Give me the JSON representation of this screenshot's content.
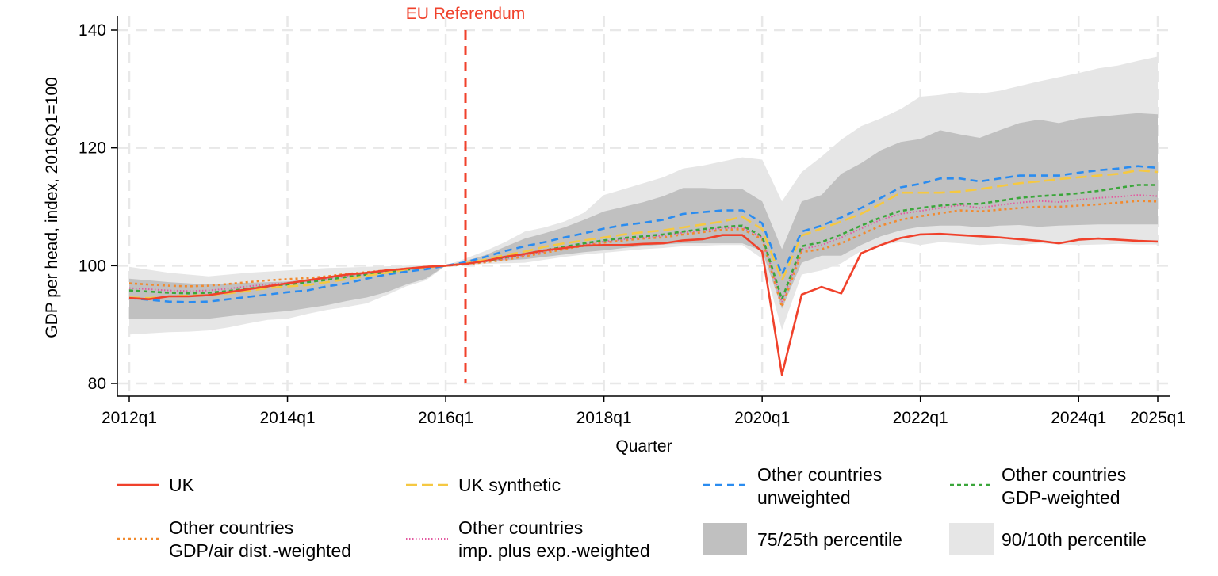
{
  "chart_data": {
    "type": "line",
    "title": "",
    "xlabel": "Quarter",
    "ylabel": "GDP per head, index, 2016Q1=100",
    "ylim": [
      80,
      140
    ],
    "yticks": [
      "80",
      "100",
      "120",
      "140"
    ],
    "x_start": "2012q1",
    "x_end": "2025q1",
    "xticks": [
      {
        "q": "2012q1",
        "label": "2012q1"
      },
      {
        "q": "2014q1",
        "label": "2014q1"
      },
      {
        "q": "2016q1",
        "label": "2016q1"
      },
      {
        "q": "2018q1",
        "label": "2018q1"
      },
      {
        "q": "2020q1",
        "label": "2020q1"
      },
      {
        "q": "2022q1",
        "label": "2022q1"
      },
      {
        "q": "2024q1",
        "label": "2024q1"
      },
      {
        "q": "2025q1",
        "label": "2025q1"
      }
    ],
    "grid": true,
    "legend_placement": "bottom",
    "annotation": {
      "label": "EU Referendum",
      "at": "2016q2",
      "color": "#f0412b"
    },
    "bands": [
      {
        "name": "90/10th percentile",
        "color": "#e6e6e6",
        "upper": [
          99.8,
          99.3,
          98.8,
          98.5,
          98.2,
          98.5,
          98.8,
          99.0,
          99.2,
          99.4,
          99.6,
          99.7,
          99.8,
          99.9,
          100.0,
          100.1,
          100.0,
          101.2,
          102.5,
          104.0,
          105.8,
          106.5,
          107.5,
          109.0,
          112.0,
          113.0,
          114.0,
          115.0,
          116.5,
          117.0,
          117.7,
          118.4,
          118.0,
          110.9,
          115.9,
          118.5,
          121.4,
          123.7,
          125.0,
          126.6,
          128.7,
          129.0,
          129.5,
          129.2,
          129.7,
          130.5,
          131.3,
          132.0,
          132.7,
          133.5,
          134.0,
          134.8,
          135.5
        ],
        "lower": [
          88.3,
          88.5,
          88.7,
          88.8,
          89.0,
          89.5,
          90.2,
          90.8,
          91.0,
          91.8,
          92.5,
          93.0,
          93.6,
          95.0,
          96.5,
          97.5,
          100.0,
          100.1,
          100.3,
          100.4,
          100.5,
          101.0,
          101.5,
          101.9,
          102.2,
          102.5,
          102.8,
          103.0,
          103.3,
          103.4,
          103.5,
          103.5,
          101.2,
          89.1,
          98.5,
          99.2,
          100.4,
          102.5,
          103.5,
          104.0,
          103.5,
          104.0,
          103.8,
          103.5,
          103.7,
          103.5,
          103.8,
          103.6,
          103.5,
          103.6,
          103.7,
          103.6,
          103.6
        ]
      },
      {
        "name": "75/25th percentile",
        "color": "#c0c0c0",
        "upper": [
          97.8,
          97.5,
          97.2,
          97.0,
          96.8,
          97.0,
          97.1,
          97.2,
          97.3,
          97.7,
          98.1,
          98.5,
          98.8,
          99.2,
          99.5,
          99.8,
          100.0,
          100.8,
          101.8,
          103.2,
          104.6,
          105.5,
          106.5,
          107.8,
          109.2,
          110.0,
          110.8,
          111.8,
          113.2,
          113.2,
          113.0,
          113.0,
          110.9,
          102.8,
          110.9,
          112.0,
          115.6,
          117.4,
          119.6,
          121.0,
          121.5,
          123.0,
          122.3,
          121.7,
          123.0,
          124.2,
          124.8,
          124.2,
          125.0,
          125.3,
          125.6,
          125.9,
          125.7
        ],
        "lower": [
          91.0,
          91.0,
          91.0,
          91.0,
          91.0,
          91.4,
          91.8,
          92.0,
          92.3,
          92.8,
          93.3,
          94.0,
          94.6,
          95.5,
          96.8,
          97.8,
          100.0,
          100.3,
          100.6,
          100.9,
          101.1,
          101.5,
          101.9,
          102.3,
          102.6,
          103.0,
          103.3,
          103.6,
          103.8,
          103.8,
          103.8,
          103.8,
          102.5,
          92.7,
          100.5,
          101.7,
          101.7,
          103.5,
          105.0,
          106.0,
          106.6,
          106.8,
          106.8,
          106.5,
          106.8,
          106.9,
          106.6,
          106.8,
          106.9,
          107.0,
          107.0,
          107.0,
          107.0
        ]
      }
    ],
    "series": [
      {
        "name": "Other countries GDP/air dist.-weighted",
        "color": "#f28a2e",
        "style": "dotted",
        "values": [
          97.0,
          96.8,
          96.6,
          96.5,
          96.6,
          96.9,
          97.2,
          97.5,
          97.7,
          97.9,
          98.2,
          98.6,
          98.9,
          99.2,
          99.5,
          99.8,
          100,
          100.2,
          100.6,
          101.0,
          101.6,
          102.2,
          102.8,
          103.4,
          103.9,
          104.3,
          104.6,
          104.8,
          105.3,
          105.7,
          106.1,
          106.2,
          104.5,
          93.0,
          102.3,
          102.8,
          103.8,
          105.3,
          106.8,
          107.8,
          108.4,
          108.9,
          109.4,
          109.2,
          109.5,
          109.8,
          110.0,
          110.0,
          110.2,
          110.4,
          110.7,
          111.0,
          110.9
        ]
      },
      {
        "name": "Other countries imp. plus exp.-weighted",
        "color": "#e35aa0",
        "style": "fine-dotted",
        "values": [
          96.2,
          96.0,
          95.8,
          95.7,
          95.8,
          96.1,
          96.5,
          96.8,
          97.1,
          97.4,
          97.8,
          98.2,
          98.6,
          99.0,
          99.4,
          99.7,
          100,
          100.3,
          100.7,
          101.2,
          101.8,
          102.4,
          103.0,
          103.6,
          104.1,
          104.5,
          104.8,
          105.1,
          105.6,
          106.0,
          106.4,
          106.5,
          104.8,
          93.8,
          102.8,
          103.5,
          104.8,
          106.3,
          107.8,
          108.8,
          109.3,
          109.8,
          110.3,
          109.8,
          110.3,
          110.7,
          111.0,
          110.8,
          111.2,
          111.5,
          111.7,
          112.0,
          111.8
        ]
      },
      {
        "name": "Other countries GDP-weighted",
        "color": "#3aa63a",
        "style": "short-dash",
        "values": [
          95.8,
          95.6,
          95.4,
          95.3,
          95.4,
          95.7,
          96.1,
          96.5,
          96.8,
          97.2,
          97.6,
          98.1,
          98.5,
          98.9,
          99.3,
          99.7,
          100,
          100.3,
          100.8,
          101.4,
          102.0,
          102.6,
          103.2,
          103.8,
          104.3,
          104.7,
          105.0,
          105.3,
          105.8,
          106.2,
          106.6,
          106.8,
          105.0,
          94.3,
          103.3,
          104.0,
          105.3,
          106.8,
          108.2,
          109.3,
          109.8,
          110.2,
          110.5,
          110.5,
          111.0,
          111.5,
          111.8,
          112.0,
          112.3,
          112.7,
          113.2,
          113.7,
          113.7
        ]
      },
      {
        "name": "UK synthetic",
        "color": "#f5c842",
        "style": "long-dash",
        "values": [
          94.6,
          94.5,
          94.8,
          94.9,
          95.0,
          95.3,
          95.7,
          96.2,
          96.5,
          96.7,
          97.2,
          97.7,
          98.3,
          98.8,
          99.3,
          99.7,
          100,
          100.4,
          101.0,
          101.8,
          102.4,
          103.2,
          103.8,
          104.3,
          104.8,
          105.3,
          105.7,
          106.0,
          106.5,
          107.0,
          107.5,
          108.3,
          106.2,
          97.5,
          105.1,
          106.3,
          107.5,
          108.8,
          110.5,
          112.4,
          112.4,
          112.4,
          112.6,
          113.0,
          113.5,
          114.0,
          114.3,
          114.7,
          115.0,
          115.3,
          115.6,
          116.2,
          115.9
        ]
      },
      {
        "name": "Other countries unweighted",
        "color": "#2a8cf0",
        "style": "dash",
        "values": [
          94.5,
          94.2,
          93.9,
          93.8,
          93.9,
          94.3,
          94.7,
          95.1,
          95.5,
          95.8,
          96.5,
          97.0,
          97.8,
          98.5,
          99.0,
          99.4,
          100,
          100.6,
          101.5,
          102.5,
          103.3,
          104.0,
          104.8,
          105.5,
          106.3,
          106.9,
          107.3,
          107.8,
          108.8,
          109.1,
          109.4,
          109.4,
          107.2,
          98.5,
          105.8,
          106.8,
          108.2,
          109.8,
          111.5,
          113.3,
          113.9,
          114.8,
          114.8,
          114.3,
          114.8,
          115.3,
          115.3,
          115.3,
          115.8,
          116.2,
          116.5,
          116.9,
          116.6
        ]
      },
      {
        "name": "UK",
        "color": "#f0412b",
        "style": "solid",
        "values": [
          94.5,
          94.3,
          94.8,
          94.8,
          95.0,
          95.5,
          96.0,
          96.5,
          97.0,
          97.5,
          98.0,
          98.5,
          98.8,
          99.2,
          99.5,
          99.8,
          100,
          100.3,
          100.8,
          101.5,
          102.0,
          102.6,
          103.0,
          103.4,
          103.5,
          103.5,
          103.7,
          103.8,
          104.3,
          104.5,
          105.2,
          105.2,
          102.4,
          81.5,
          95.1,
          96.4,
          95.3,
          102.1,
          103.5,
          104.7,
          105.3,
          105.4,
          105.2,
          105.0,
          104.8,
          104.5,
          104.2,
          103.8,
          104.4,
          104.6,
          104.4,
          104.2,
          104.1
        ]
      }
    ]
  },
  "legend": {
    "uk": "UK",
    "uk_synthetic": "UK synthetic",
    "unweighted_l1": "Other countries",
    "unweighted_l2": "unweighted",
    "gdp_l1": "Other countries",
    "gdp_l2": "GDP-weighted",
    "air_l1": "Other countries",
    "air_l2": "GDP/air dist.-weighted",
    "imp_l1": "Other countries",
    "imp_l2": "imp. plus exp.-weighted",
    "p75": "75/25th percentile",
    "p90": "90/10th percentile"
  }
}
